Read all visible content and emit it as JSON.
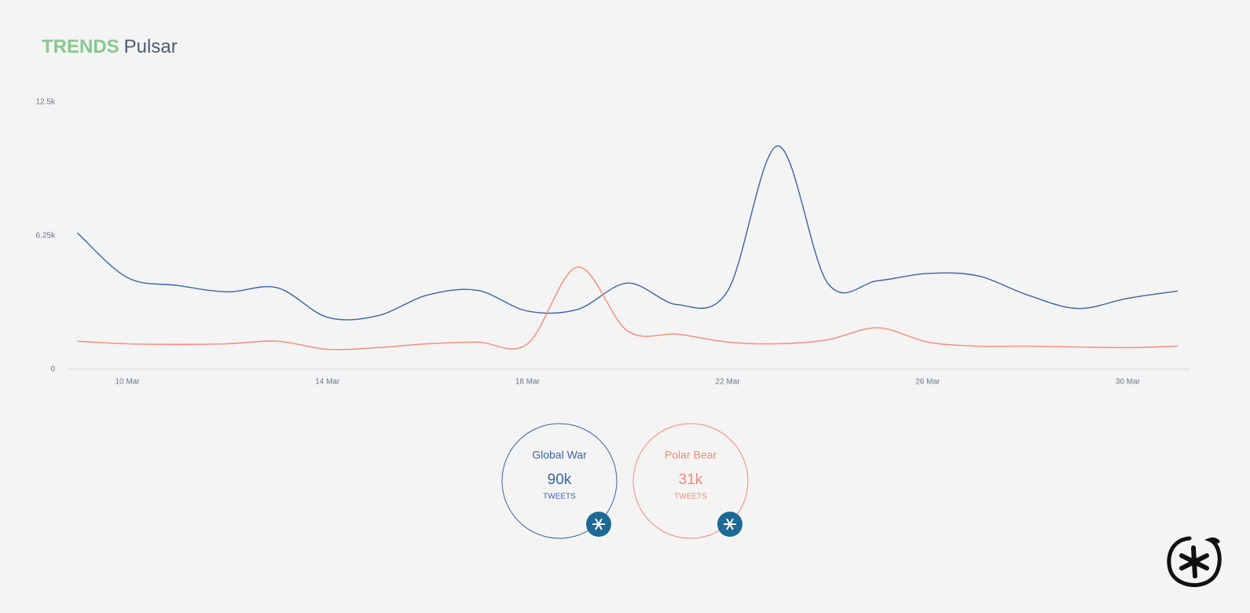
{
  "header": {
    "brand": "TRENDS",
    "product": "Pulsar"
  },
  "chart_data": {
    "type": "line",
    "categories": [
      null,
      "10 Mar",
      null,
      null,
      null,
      "14 Mar",
      null,
      null,
      null,
      "18 Mar",
      null,
      null,
      null,
      "22 Mar",
      null,
      null,
      null,
      "26 Mar",
      null,
      null,
      null,
      "30 Mar",
      null
    ],
    "series": [
      {
        "name": "Global War",
        "color": "#3a64a8",
        "values": [
          6380,
          4290,
          3920,
          3620,
          3810,
          2430,
          2500,
          3470,
          3690,
          2720,
          2800,
          4030,
          3020,
          3660,
          10450,
          4030,
          4140,
          4480,
          4370,
          3470,
          2840,
          3320,
          3660
        ]
      },
      {
        "name": "Polar Bear",
        "color": "#f58a76",
        "values": [
          1310,
          1190,
          1160,
          1190,
          1310,
          930,
          1010,
          1190,
          1270,
          1190,
          4780,
          1790,
          1640,
          1270,
          1190,
          1380,
          1940,
          1270,
          1080,
          1080,
          1040,
          1010,
          1080
        ]
      }
    ],
    "ylim": [
      0,
      12500
    ],
    "yticks": [
      {
        "value": 0,
        "label": "0"
      },
      {
        "value": 6250,
        "label": "6.25k"
      },
      {
        "value": 12500,
        "label": "12.5k"
      }
    ],
    "grid": false
  },
  "legend_cards": [
    {
      "total": "90k",
      "unit": "TWEETS"
    },
    {
      "total": "31k",
      "unit": "TWEETS"
    }
  ]
}
